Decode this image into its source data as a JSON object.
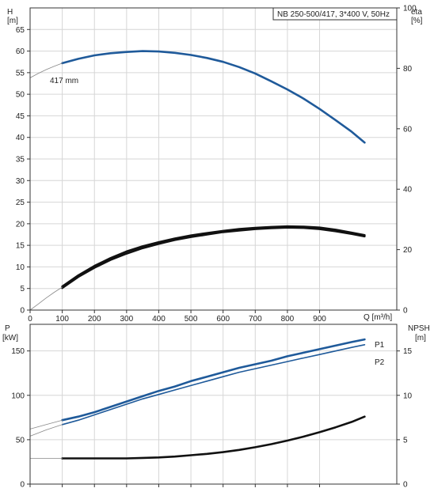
{
  "colors": {
    "blue": "#1f5a9a",
    "black": "#111111",
    "grid": "#d6d6d6",
    "axis": "#333333",
    "thin": "#888888"
  },
  "header": {
    "title": "NB 250-500/417, 3*400 V, 50Hz"
  },
  "chart_data": [
    {
      "type": "line",
      "id": "performance",
      "xlabel": "Q [m³/h]",
      "xlim": [
        0,
        1140
      ],
      "xticks": [
        "0",
        "100",
        "200",
        "300",
        "400",
        "500",
        "600",
        "700",
        "800",
        "900"
      ],
      "grid": true,
      "left_axis": {
        "label_top": "H",
        "label_bottom": "[m]",
        "ylim": [
          0,
          70
        ],
        "ticks": [
          "0",
          "5",
          "10",
          "15",
          "20",
          "25",
          "30",
          "35",
          "40",
          "45",
          "50",
          "55",
          "60",
          "65"
        ]
      },
      "right_axis": {
        "label_top": "eta",
        "label_bottom": "[%]",
        "ylim": [
          0,
          100
        ],
        "ticks": [
          "0",
          "20",
          "40",
          "60",
          "80",
          "100"
        ]
      },
      "annotations": [
        {
          "text": "417 mm"
        }
      ],
      "series": [
        {
          "axis": "left",
          "color": "blue",
          "style": "thick",
          "x": [
            100,
            150,
            200,
            250,
            300,
            350,
            400,
            450,
            500,
            550,
            600,
            650,
            700,
            750,
            800,
            850,
            900,
            950,
            1000,
            1040
          ],
          "y": [
            57.2,
            58.2,
            59.0,
            59.5,
            59.8,
            60.0,
            59.9,
            59.6,
            59.1,
            58.4,
            57.5,
            56.3,
            54.8,
            53.0,
            51.1,
            49.0,
            46.6,
            44.0,
            41.3,
            38.8
          ]
        },
        {
          "axis": "left",
          "color": "thin",
          "style": "thin",
          "x": [
            0,
            25,
            50,
            75,
            100
          ],
          "y": [
            53.8,
            54.8,
            55.7,
            56.5,
            57.2
          ]
        },
        {
          "axis": "right",
          "color": "black",
          "style": "thick",
          "x": [
            100,
            150,
            200,
            250,
            300,
            350,
            400,
            450,
            500,
            550,
            600,
            650,
            700,
            750,
            800,
            850,
            900,
            950,
            1000,
            1040
          ],
          "y": [
            7.8,
            11.5,
            14.6,
            17.2,
            19.4,
            21.1,
            22.5,
            23.7,
            24.7,
            25.5,
            26.2,
            26.8,
            27.2,
            27.5,
            27.7,
            27.6,
            27.3,
            26.6,
            25.6,
            24.8
          ]
        },
        {
          "axis": "right",
          "color": "black",
          "style": "thick",
          "x": [
            100,
            150,
            200,
            250,
            300,
            350,
            400,
            450,
            500,
            550,
            600,
            650,
            700,
            750,
            800,
            850,
            900,
            950,
            1000,
            1040
          ],
          "y": [
            7.3,
            11.0,
            14.0,
            16.6,
            18.7,
            20.5,
            21.9,
            23.2,
            24.2,
            25.0,
            25.8,
            26.3,
            26.8,
            27.1,
            27.3,
            27.2,
            26.8,
            26.1,
            25.2,
            24.4
          ]
        },
        {
          "axis": "right",
          "color": "thin",
          "style": "thin",
          "x": [
            0,
            25,
            50,
            75,
            100
          ],
          "y": [
            0,
            2.0,
            4.0,
            5.9,
            7.6
          ]
        }
      ]
    },
    {
      "type": "line",
      "id": "power",
      "xlim": [
        0,
        1140
      ],
      "grid": true,
      "left_axis": {
        "label_top": "P",
        "label_bottom": "[kW]",
        "ylim": [
          0,
          180
        ],
        "ticks": [
          "0",
          "50",
          "100",
          "150"
        ]
      },
      "right_axis": {
        "label_top": "NPSH",
        "label_bottom": "[m]",
        "ylim": [
          0,
          18
        ],
        "ticks": [
          "0",
          "5",
          "10",
          "15"
        ]
      },
      "series": [
        {
          "name": "P1",
          "axis": "left",
          "color": "blue",
          "style": "thick",
          "x": [
            100,
            150,
            200,
            250,
            300,
            350,
            400,
            450,
            500,
            550,
            600,
            650,
            700,
            750,
            800,
            850,
            900,
            950,
            1000,
            1040
          ],
          "y": [
            72,
            76,
            81,
            87,
            93,
            99,
            105,
            110,
            116,
            121,
            126,
            131,
            135,
            139,
            144,
            148,
            152,
            156,
            160,
            163
          ]
        },
        {
          "name": "P2",
          "axis": "left",
          "color": "blue",
          "style": "medium",
          "x": [
            100,
            150,
            200,
            250,
            300,
            350,
            400,
            450,
            500,
            550,
            600,
            650,
            700,
            750,
            800,
            850,
            900,
            950,
            1000,
            1040
          ],
          "y": [
            67,
            72,
            78,
            84,
            90,
            96,
            101,
            106,
            111,
            116,
            121,
            126,
            130,
            134,
            138,
            142,
            146,
            150,
            154,
            157
          ]
        },
        {
          "axis": "left",
          "color": "thin",
          "style": "thin",
          "x": [
            0,
            50,
            100
          ],
          "y": [
            62,
            67,
            72
          ]
        },
        {
          "axis": "left",
          "color": "thin",
          "style": "thin",
          "x": [
            0,
            50,
            100
          ],
          "y": [
            54,
            61,
            67
          ]
        },
        {
          "axis": "right",
          "color": "black",
          "style": "thick",
          "x": [
            100,
            150,
            200,
            250,
            300,
            350,
            400,
            450,
            500,
            550,
            600,
            650,
            700,
            750,
            800,
            850,
            900,
            950,
            1000,
            1040
          ],
          "y": [
            2.9,
            2.9,
            2.9,
            2.9,
            2.9,
            2.95,
            3.0,
            3.1,
            3.25,
            3.4,
            3.6,
            3.85,
            4.15,
            4.5,
            4.9,
            5.35,
            5.85,
            6.4,
            7.0,
            7.6
          ]
        },
        {
          "axis": "right",
          "color": "thin",
          "style": "thin",
          "x": [
            0,
            50,
            100
          ],
          "y": [
            2.9,
            2.9,
            2.9
          ]
        }
      ]
    }
  ]
}
